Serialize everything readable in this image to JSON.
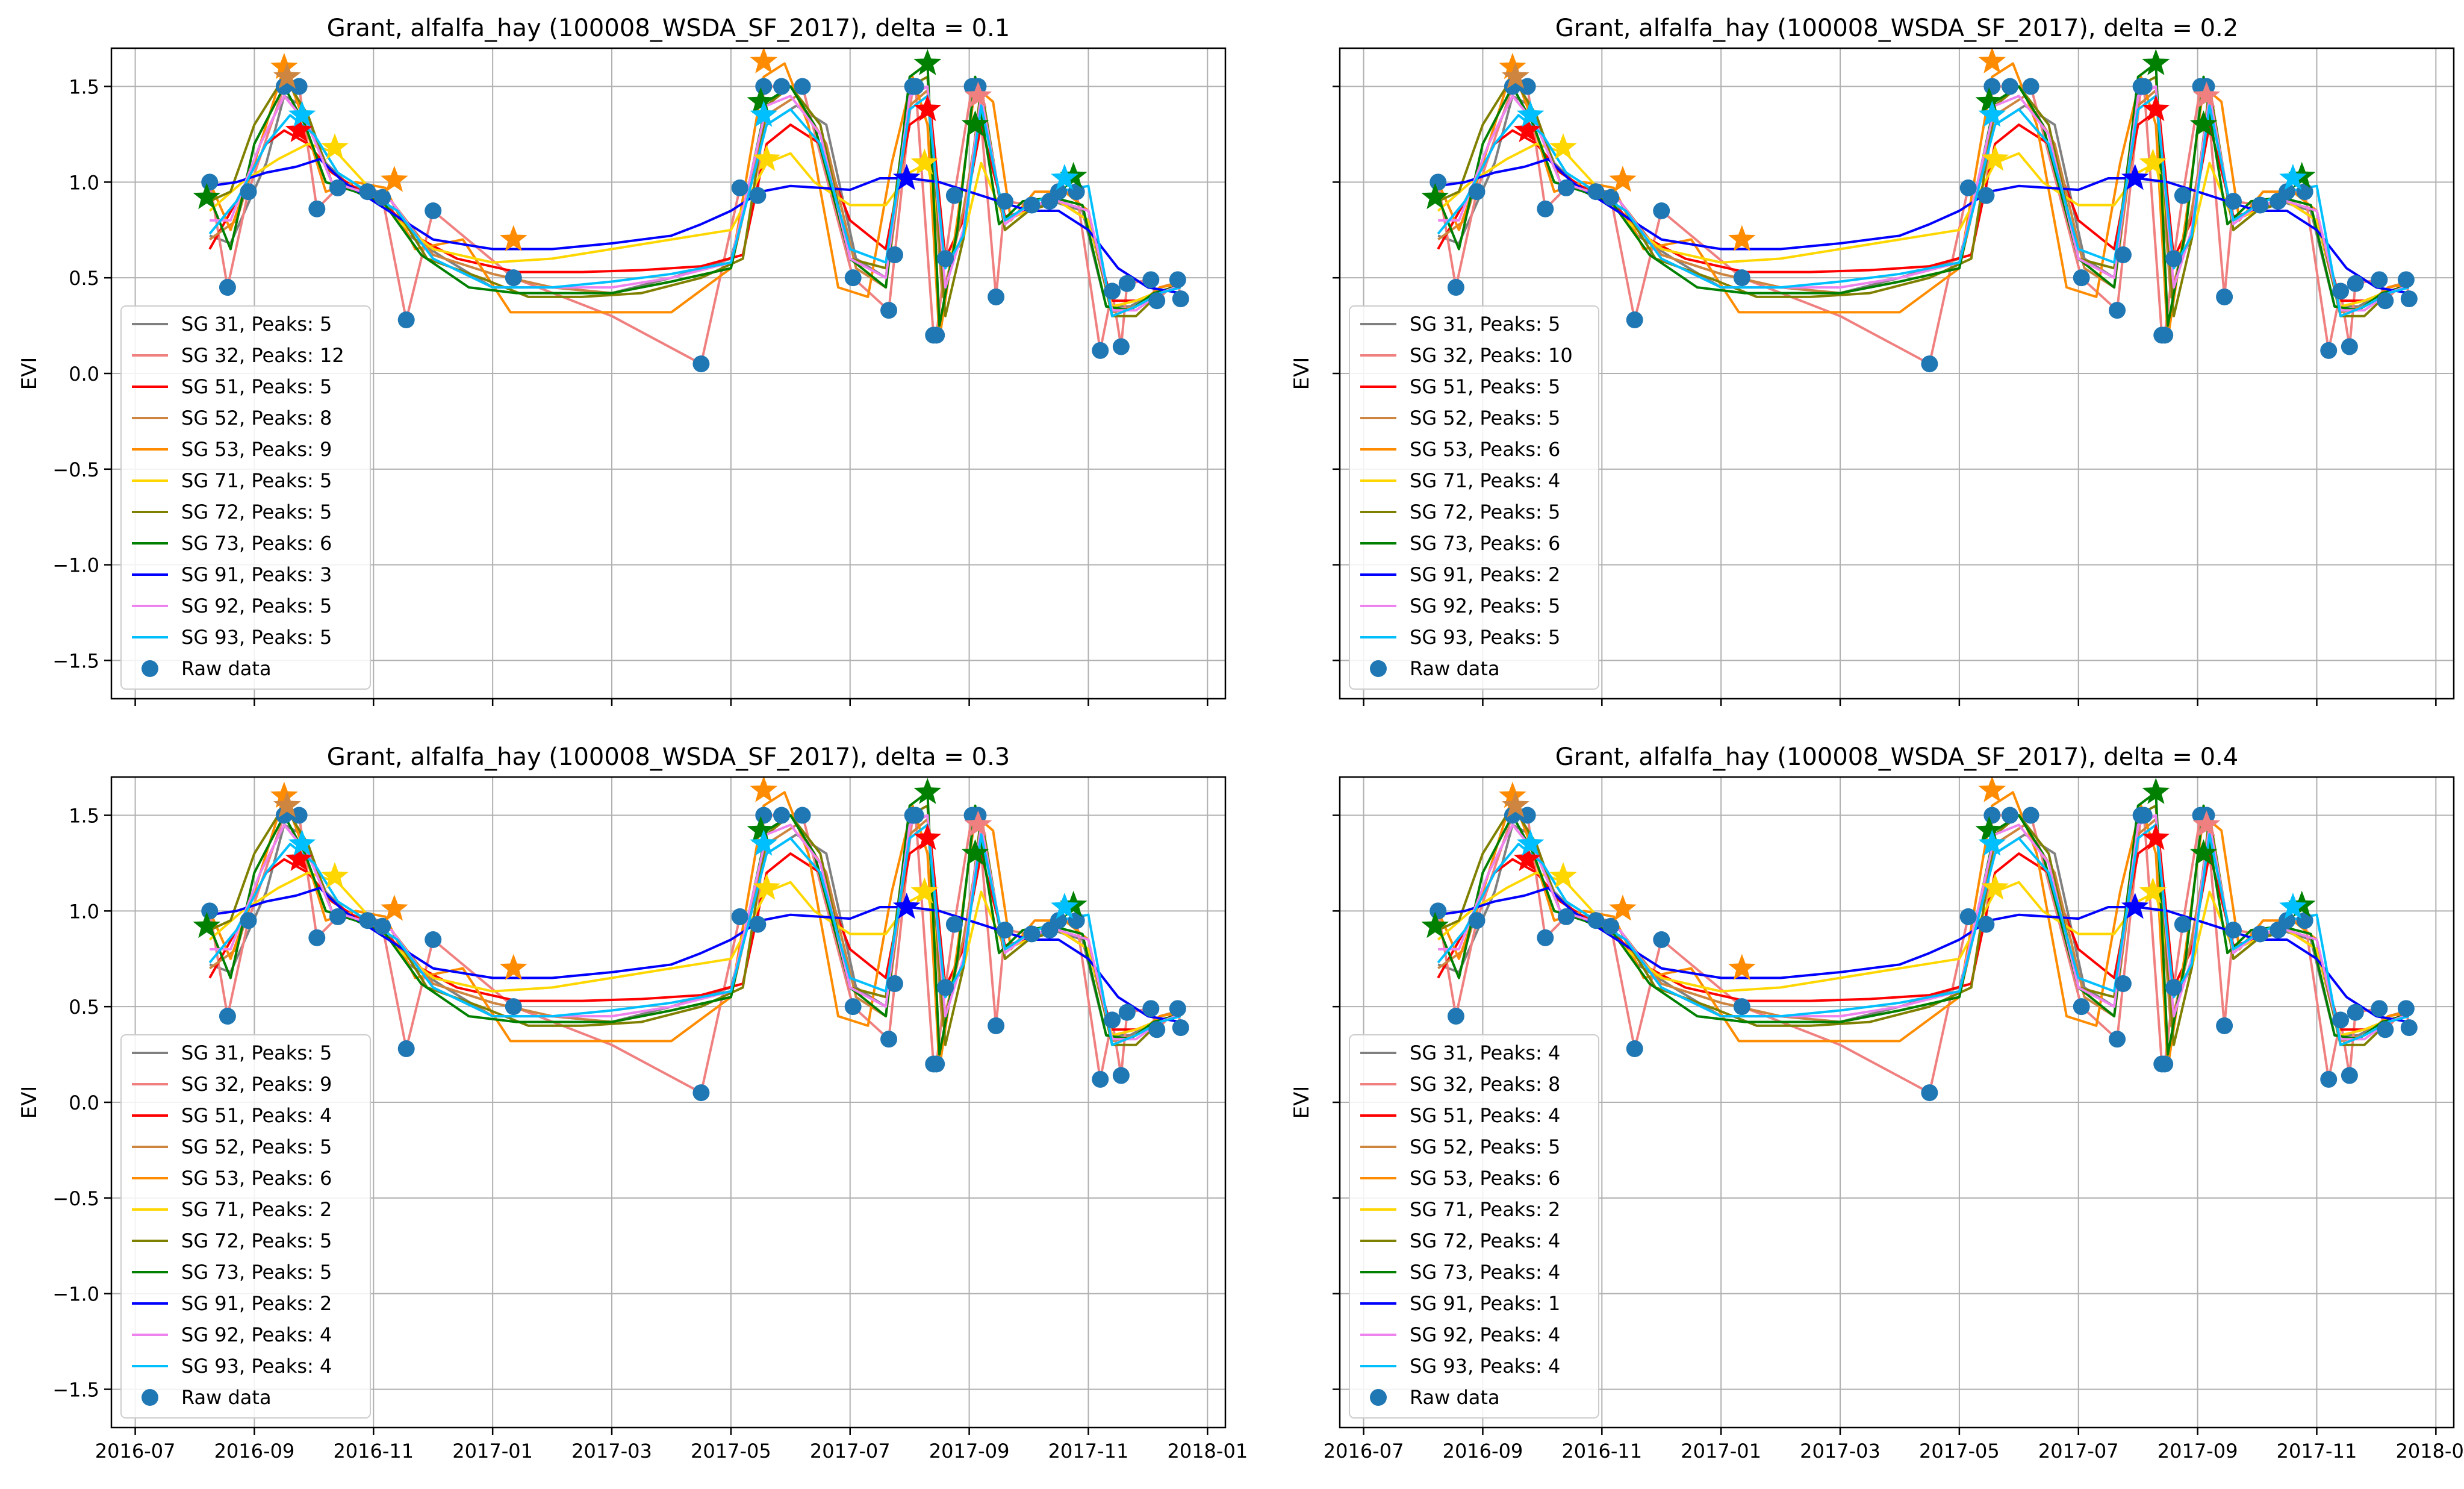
{
  "chart_data": [
    {
      "type": "line",
      "title": "Grant, alfalfa_hay (100008_WSDA_SF_2017), delta = 0.1",
      "xlabel": "",
      "ylabel": "EVI",
      "legend_entries": [
        "SG 31, Peaks: 5",
        "SG 32, Peaks: 12",
        "SG 51, Peaks: 5",
        "SG 52, Peaks: 8",
        "SG 53, Peaks: 9",
        "SG 71, Peaks: 5",
        "SG 72, Peaks: 5",
        "SG 73, Peaks: 6",
        "SG 91, Peaks: 3",
        "SG 92, Peaks: 5",
        "SG 93, Peaks: 5",
        "Raw data"
      ],
      "show_xticks": false
    },
    {
      "type": "line",
      "title": "Grant, alfalfa_hay (100008_WSDA_SF_2017), delta = 0.2",
      "xlabel": "",
      "ylabel": "EVI",
      "legend_entries": [
        "SG 31, Peaks: 5",
        "SG 32, Peaks: 10",
        "SG 51, Peaks: 5",
        "SG 52, Peaks: 5",
        "SG 53, Peaks: 6",
        "SG 71, Peaks: 4",
        "SG 72, Peaks: 5",
        "SG 73, Peaks: 6",
        "SG 91, Peaks: 2",
        "SG 92, Peaks: 5",
        "SG 93, Peaks: 5",
        "Raw data"
      ],
      "show_xticks": false
    },
    {
      "type": "line",
      "title": "Grant, alfalfa_hay (100008_WSDA_SF_2017), delta = 0.3",
      "xlabel": "",
      "ylabel": "EVI",
      "legend_entries": [
        "SG 31, Peaks: 5",
        "SG 32, Peaks: 9",
        "SG 51, Peaks: 4",
        "SG 52, Peaks: 5",
        "SG 53, Peaks: 6",
        "SG 71, Peaks: 2",
        "SG 72, Peaks: 5",
        "SG 73, Peaks: 5",
        "SG 91, Peaks: 2",
        "SG 92, Peaks: 4",
        "SG 93, Peaks: 4",
        "Raw data"
      ],
      "show_xticks": true
    },
    {
      "type": "line",
      "title": "Grant, alfalfa_hay (100008_WSDA_SF_2017), delta = 0.4",
      "xlabel": "",
      "ylabel": "EVI",
      "legend_entries": [
        "SG 31, Peaks: 4",
        "SG 32, Peaks: 8",
        "SG 51, Peaks: 4",
        "SG 52, Peaks: 5",
        "SG 53, Peaks: 6",
        "SG 71, Peaks: 2",
        "SG 72, Peaks: 4",
        "SG 73, Peaks: 4",
        "SG 91, Peaks: 1",
        "SG 92, Peaks: 4",
        "SG 93, Peaks: 4",
        "Raw data"
      ],
      "show_xticks": true
    }
  ],
  "shared": {
    "xlim": [
      -0.4,
      18.3
    ],
    "ylim": [
      -1.7,
      1.7
    ],
    "yticks": [
      1.5,
      1.0,
      0.5,
      0.0,
      -0.5,
      -1.0,
      -1.5
    ],
    "ytick_labels": [
      "1.5",
      "1.0",
      "0.5",
      "0.0",
      "−0.5",
      "−1.0",
      "−1.5"
    ],
    "xticks": [
      0,
      2,
      4,
      6,
      8,
      10,
      12,
      14,
      16,
      18
    ],
    "xtick_labels": [
      "2016-07",
      "2016-09",
      "2016-11",
      "2017-01",
      "2017-03",
      "2017-05",
      "2017-07",
      "2017-09",
      "2017-11",
      "2018-01"
    ],
    "grid": true,
    "legend_position": "lower-left",
    "series_colors": [
      "#808080",
      "#f08080",
      "#ff0000",
      "#cd853f",
      "#ff8c00",
      "#ffd700",
      "#808000",
      "#008000",
      "#0000ff",
      "#ee82ee",
      "#00bfff"
    ],
    "raw_color": "#1f77b4",
    "raw_data": {
      "x": [
        1.25,
        1.55,
        1.9,
        2.5,
        2.75,
        3.05,
        3.4,
        3.9,
        4.15,
        4.55,
        5.0,
        6.35,
        9.5,
        10.15,
        10.45,
        10.55,
        10.85,
        11.2,
        12.05,
        12.65,
        12.75,
        13.05,
        13.1,
        13.4,
        13.45,
        13.6,
        13.75,
        14.05,
        14.15,
        14.45,
        14.6,
        15.05,
        15.35,
        15.5,
        15.8,
        16.2,
        16.4,
        16.55,
        16.65,
        17.05,
        17.15,
        17.5,
        17.55
      ],
      "y": [
        1.0,
        0.45,
        0.95,
        1.5,
        1.5,
        0.86,
        0.97,
        0.95,
        0.92,
        0.28,
        0.85,
        0.5,
        0.05,
        0.97,
        0.93,
        1.5,
        1.5,
        1.5,
        0.5,
        0.33,
        0.62,
        1.5,
        1.5,
        0.2,
        0.2,
        0.6,
        0.93,
        1.5,
        1.5,
        0.4,
        0.9,
        0.88,
        0.9,
        0.95,
        0.95,
        0.12,
        0.43,
        0.14,
        0.47,
        0.49,
        0.38,
        0.49,
        0.39
      ]
    },
    "series": [
      {
        "x": [
          1.25,
          1.6,
          2.2,
          2.5,
          2.8,
          3.2,
          3.6,
          4.1,
          4.6,
          5.2,
          6.0,
          7.0,
          8.0,
          9.0,
          10.0,
          10.6,
          11.1,
          11.6,
          12.1,
          12.6,
          13.0,
          13.3,
          13.6,
          13.9,
          14.2,
          14.6,
          15.0,
          15.4,
          15.9,
          16.3,
          16.7,
          17.1,
          17.55
        ],
        "y": [
          0.72,
          0.68,
          1.1,
          1.45,
          1.4,
          1.1,
          0.98,
          0.95,
          0.72,
          0.6,
          0.45,
          0.45,
          0.42,
          0.5,
          0.6,
          1.3,
          1.4,
          1.3,
          0.6,
          0.5,
          1.45,
          1.5,
          0.55,
          0.7,
          1.45,
          0.75,
          0.85,
          0.9,
          0.85,
          0.35,
          0.35,
          0.42,
          0.46
        ]
      },
      {
        "x": [
          1.25,
          1.55,
          1.9,
          2.5,
          2.75,
          3.05,
          3.4,
          3.9,
          4.15,
          4.55,
          5.0,
          6.35,
          8.0,
          9.5,
          10.15,
          10.45,
          10.55,
          10.85,
          11.2,
          12.05,
          12.65,
          12.75,
          13.05,
          13.1,
          13.4,
          13.45,
          13.6,
          13.75,
          14.05,
          14.15,
          14.45,
          14.6,
          15.05,
          15.35,
          15.5,
          15.8,
          16.2,
          16.4,
          16.55,
          16.65,
          17.05,
          17.15,
          17.5,
          17.55
        ],
        "y": [
          1.0,
          0.45,
          0.95,
          1.5,
          1.5,
          0.86,
          0.97,
          0.95,
          0.92,
          0.28,
          0.85,
          0.5,
          0.3,
          0.05,
          0.97,
          0.93,
          1.5,
          1.5,
          1.5,
          0.5,
          0.33,
          0.62,
          1.5,
          1.5,
          0.2,
          0.2,
          0.6,
          0.93,
          1.5,
          1.5,
          0.4,
          0.9,
          0.88,
          0.9,
          0.95,
          0.95,
          0.12,
          0.43,
          0.14,
          0.47,
          0.49,
          0.38,
          0.49,
          0.39
        ]
      },
      {
        "x": [
          1.25,
          1.7,
          2.2,
          2.5,
          2.9,
          3.3,
          3.8,
          4.3,
          4.8,
          5.4,
          6.4,
          7.5,
          8.5,
          9.5,
          10.2,
          10.6,
          11.0,
          11.5,
          12.0,
          12.6,
          13.0,
          13.35,
          13.6,
          13.9,
          14.2,
          14.6,
          15.0,
          15.5,
          16.0,
          16.4,
          16.8,
          17.2,
          17.55
        ],
        "y": [
          0.65,
          0.9,
          1.2,
          1.27,
          1.2,
          1.05,
          0.95,
          0.85,
          0.7,
          0.6,
          0.53,
          0.53,
          0.54,
          0.56,
          0.62,
          1.2,
          1.3,
          1.2,
          0.8,
          0.65,
          1.3,
          1.38,
          0.6,
          0.8,
          1.3,
          0.82,
          0.85,
          0.9,
          0.8,
          0.38,
          0.38,
          0.43,
          0.46
        ]
      },
      {
        "x": [
          1.25,
          1.7,
          2.1,
          2.5,
          2.9,
          3.3,
          3.8,
          4.3,
          5.0,
          6.0,
          7.0,
          8.0,
          9.0,
          10.0,
          10.6,
          11.1,
          11.6,
          12.1,
          12.6,
          13.0,
          13.3,
          13.55,
          13.9,
          14.2,
          14.6,
          15.0,
          15.5,
          16.0,
          16.4,
          16.8,
          17.2,
          17.55
        ],
        "y": [
          0.7,
          0.8,
          1.2,
          1.45,
          1.3,
          1.0,
          0.95,
          0.9,
          0.62,
          0.52,
          0.45,
          0.42,
          0.48,
          0.55,
          1.35,
          1.45,
          1.2,
          0.55,
          0.45,
          1.4,
          1.48,
          0.4,
          0.85,
          1.4,
          0.8,
          0.88,
          0.9,
          0.8,
          0.32,
          0.35,
          0.45,
          0.48
        ]
      },
      {
        "x": [
          1.25,
          1.6,
          2.0,
          2.5,
          2.8,
          3.2,
          3.7,
          4.2,
          4.7,
          5.5,
          6.3,
          7.0,
          8.0,
          9.0,
          10.0,
          10.55,
          10.9,
          11.3,
          11.8,
          12.3,
          12.7,
          13.05,
          13.3,
          13.5,
          13.8,
          14.1,
          14.4,
          14.7,
          15.1,
          15.6,
          16.0,
          16.4,
          16.8,
          17.2,
          17.55
        ],
        "y": [
          1.0,
          0.75,
          1.1,
          1.6,
          1.35,
          0.95,
          1.0,
          0.97,
          0.65,
          0.7,
          0.32,
          0.32,
          0.32,
          0.32,
          0.55,
          1.55,
          1.62,
          1.3,
          0.45,
          0.4,
          1.1,
          1.55,
          1.3,
          0.18,
          0.8,
          1.5,
          1.42,
          0.8,
          0.95,
          0.95,
          0.85,
          0.3,
          0.35,
          0.45,
          0.47
        ]
      },
      {
        "x": [
          1.25,
          1.8,
          2.4,
          2.9,
          3.4,
          3.9,
          4.4,
          5.0,
          6.0,
          7.0,
          8.0,
          9.0,
          10.0,
          10.6,
          11.0,
          11.4,
          12.0,
          12.6,
          13.0,
          13.3,
          13.6,
          13.9,
          14.2,
          14.6,
          15.0,
          15.5,
          16.0,
          16.4,
          16.8,
          17.2,
          17.55
        ],
        "y": [
          0.85,
          1.0,
          1.12,
          1.2,
          1.15,
          0.98,
          0.8,
          0.65,
          0.58,
          0.6,
          0.65,
          0.7,
          0.75,
          1.1,
          1.15,
          1.0,
          0.88,
          0.88,
          1.05,
          1.1,
          0.6,
          0.7,
          1.1,
          0.8,
          0.85,
          0.9,
          0.8,
          0.35,
          0.38,
          0.43,
          0.45
        ]
      },
      {
        "x": [
          1.25,
          1.6,
          2.0,
          2.5,
          2.9,
          3.3,
          3.8,
          4.3,
          4.9,
          5.8,
          6.6,
          7.5,
          8.5,
          9.5,
          10.2,
          10.6,
          11.0,
          11.5,
          12.0,
          12.6,
          13.0,
          13.3,
          13.6,
          13.9,
          14.2,
          14.6,
          15.0,
          15.5,
          16.0,
          16.4,
          16.8,
          17.2,
          17.55
        ],
        "y": [
          0.9,
          0.95,
          1.3,
          1.55,
          1.35,
          1.0,
          0.95,
          0.9,
          0.6,
          0.5,
          0.4,
          0.4,
          0.42,
          0.5,
          0.6,
          1.4,
          1.5,
          1.3,
          0.6,
          0.55,
          1.5,
          1.55,
          0.3,
          0.7,
          1.5,
          0.75,
          0.85,
          0.9,
          0.85,
          0.3,
          0.3,
          0.42,
          0.46
        ]
      },
      {
        "x": [
          1.25,
          1.6,
          2.0,
          2.5,
          2.85,
          3.2,
          3.7,
          4.2,
          4.8,
          5.6,
          6.4,
          7.2,
          8.0,
          9.0,
          10.0,
          10.6,
          11.0,
          11.4,
          12.0,
          12.6,
          13.0,
          13.3,
          13.5,
          13.8,
          14.1,
          14.5,
          14.9,
          15.4,
          15.9,
          16.3,
          16.7,
          17.1,
          17.55
        ],
        "y": [
          0.92,
          0.65,
          1.2,
          1.5,
          1.3,
          1.0,
          0.95,
          0.88,
          0.62,
          0.45,
          0.42,
          0.42,
          0.42,
          0.48,
          0.55,
          1.42,
          1.5,
          1.3,
          0.6,
          0.45,
          1.55,
          1.62,
          0.25,
          0.75,
          1.55,
          0.78,
          0.9,
          0.92,
          0.88,
          0.35,
          0.33,
          0.42,
          0.46
        ]
      },
      {
        "x": [
          1.25,
          1.7,
          2.2,
          2.7,
          3.1,
          3.5,
          4.0,
          4.5,
          5.0,
          6.0,
          7.0,
          8.0,
          9.0,
          9.5,
          10.0,
          10.5,
          11.0,
          11.5,
          12.0,
          12.5,
          13.0,
          13.5,
          14.0,
          14.5,
          15.0,
          15.5,
          16.0,
          16.5,
          17.0,
          17.55
        ],
        "y": [
          0.98,
          1.0,
          1.05,
          1.08,
          1.12,
          1.0,
          0.9,
          0.8,
          0.7,
          0.65,
          0.65,
          0.68,
          0.72,
          0.78,
          0.85,
          0.95,
          0.98,
          0.97,
          0.96,
          1.02,
          1.02,
          1.0,
          0.95,
          0.9,
          0.85,
          0.85,
          0.75,
          0.55,
          0.45,
          0.42
        ]
      },
      {
        "x": [
          1.25,
          1.6,
          2.1,
          2.5,
          2.9,
          3.3,
          3.8,
          4.3,
          5.0,
          6.0,
          7.0,
          8.0,
          9.0,
          10.0,
          10.6,
          11.0,
          11.5,
          12.0,
          12.6,
          13.0,
          13.3,
          13.6,
          13.9,
          14.2,
          14.6,
          15.0,
          15.5,
          16.0,
          16.4,
          16.8,
          17.2,
          17.55
        ],
        "y": [
          0.8,
          0.8,
          1.2,
          1.45,
          1.3,
          1.0,
          0.95,
          0.9,
          0.6,
          0.45,
          0.45,
          0.45,
          0.5,
          0.58,
          1.4,
          1.45,
          1.25,
          0.6,
          0.5,
          1.45,
          1.5,
          0.45,
          0.75,
          1.45,
          0.78,
          0.88,
          0.9,
          0.85,
          0.33,
          0.33,
          0.42,
          0.46
        ]
      },
      {
        "x": [
          1.25,
          1.7,
          2.2,
          2.6,
          3.0,
          3.4,
          3.9,
          4.4,
          5.0,
          6.0,
          7.0,
          8.0,
          9.0,
          10.0,
          10.6,
          11.0,
          11.5,
          12.0,
          12.6,
          13.0,
          13.3,
          13.6,
          13.9,
          14.2,
          14.6,
          15.0,
          15.5,
          16.0,
          16.4,
          16.8,
          17.2,
          17.55
        ],
        "y": [
          0.73,
          0.9,
          1.2,
          1.35,
          1.25,
          1.05,
          0.95,
          0.85,
          0.6,
          0.45,
          0.45,
          0.48,
          0.52,
          0.58,
          1.3,
          1.38,
          1.2,
          0.65,
          0.58,
          1.38,
          1.45,
          0.55,
          0.72,
          1.4,
          0.8,
          0.88,
          0.95,
          0.98,
          0.3,
          0.35,
          0.42,
          0.45
        ]
      }
    ],
    "star_markers": [
      {
        "x": 2.5,
        "y": 1.6,
        "color": "#ff8c00"
      },
      {
        "x": 2.55,
        "y": 1.55,
        "color": "#cd853f"
      },
      {
        "x": 2.75,
        "y": 1.27,
        "color": "#ff0000"
      },
      {
        "x": 2.8,
        "y": 1.35,
        "color": "#00bfff"
      },
      {
        "x": 3.35,
        "y": 1.18,
        "color": "#ffd700"
      },
      {
        "x": 4.35,
        "y": 1.01,
        "color": "#ff8c00"
      },
      {
        "x": 1.2,
        "y": 0.92,
        "color": "#008000"
      },
      {
        "x": 6.35,
        "y": 0.7,
        "color": "#ff8c00"
      },
      {
        "x": 10.55,
        "y": 1.63,
        "color": "#ff8c00"
      },
      {
        "x": 10.5,
        "y": 1.42,
        "color": "#008000"
      },
      {
        "x": 10.6,
        "y": 1.12,
        "color": "#ffd700"
      },
      {
        "x": 10.55,
        "y": 1.35,
        "color": "#00bfff"
      },
      {
        "x": 13.3,
        "y": 1.62,
        "color": "#008000"
      },
      {
        "x": 13.25,
        "y": 1.1,
        "color": "#ffd700"
      },
      {
        "x": 13.3,
        "y": 1.38,
        "color": "#ff0000"
      },
      {
        "x": 12.95,
        "y": 1.02,
        "color": "#0000ff"
      },
      {
        "x": 14.1,
        "y": 1.3,
        "color": "#008000"
      },
      {
        "x": 14.15,
        "y": 1.45,
        "color": "#f08080"
      },
      {
        "x": 15.75,
        "y": 1.03,
        "color": "#008000"
      },
      {
        "x": 15.6,
        "y": 1.02,
        "color": "#00bfff"
      }
    ]
  }
}
